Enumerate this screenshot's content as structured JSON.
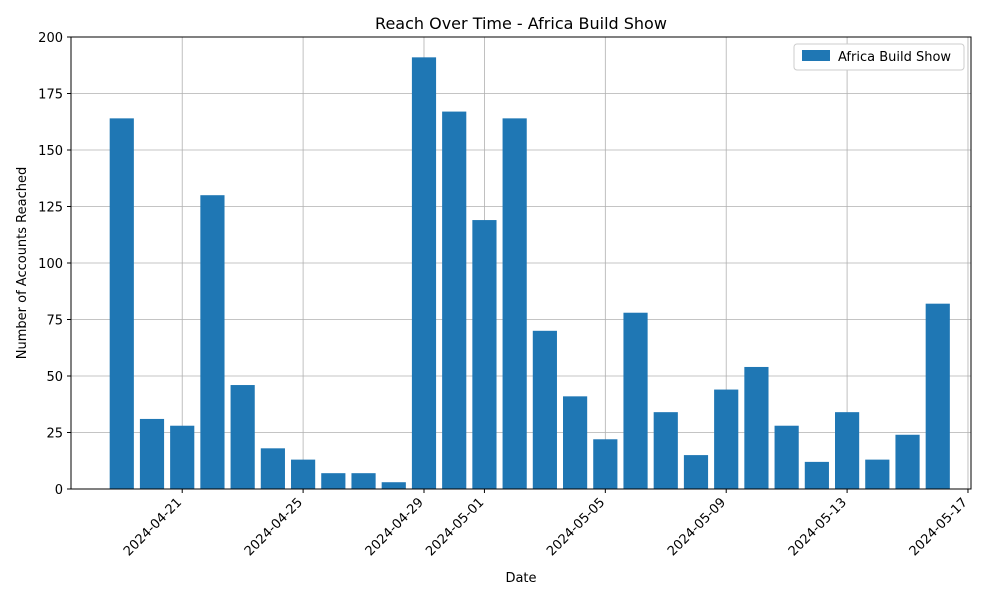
{
  "chart_data": {
    "type": "bar",
    "title": "Reach Over Time - Africa Build Show",
    "xlabel": "Date",
    "ylabel": "Number of Accounts Reached",
    "series": [
      {
        "name": "Africa Build Show",
        "color": "#1f77b4",
        "points": [
          {
            "x": "2024-04-19",
            "y": 164
          },
          {
            "x": "2024-04-20",
            "y": 31
          },
          {
            "x": "2024-04-21",
            "y": 28
          },
          {
            "x": "2024-04-22",
            "y": 130
          },
          {
            "x": "2024-04-23",
            "y": 46
          },
          {
            "x": "2024-04-24",
            "y": 18
          },
          {
            "x": "2024-04-25",
            "y": 13
          },
          {
            "x": "2024-04-26",
            "y": 7
          },
          {
            "x": "2024-04-27",
            "y": 7
          },
          {
            "x": "2024-04-28",
            "y": 3
          },
          {
            "x": "2024-04-29",
            "y": 191
          },
          {
            "x": "2024-04-30",
            "y": 167
          },
          {
            "x": "2024-05-01",
            "y": 119
          },
          {
            "x": "2024-05-02",
            "y": 164
          },
          {
            "x": "2024-05-03",
            "y": 70
          },
          {
            "x": "2024-05-04",
            "y": 41
          },
          {
            "x": "2024-05-05",
            "y": 22
          },
          {
            "x": "2024-05-06",
            "y": 78
          },
          {
            "x": "2024-05-07",
            "y": 34
          },
          {
            "x": "2024-05-08",
            "y": 15
          },
          {
            "x": "2024-05-09",
            "y": 44
          },
          {
            "x": "2024-05-10",
            "y": 54
          },
          {
            "x": "2024-05-11",
            "y": 28
          },
          {
            "x": "2024-05-12",
            "y": 12
          },
          {
            "x": "2024-05-13",
            "y": 34
          },
          {
            "x": "2024-05-14",
            "y": 13
          },
          {
            "x": "2024-05-15",
            "y": 24
          },
          {
            "x": "2024-05-16",
            "y": 82
          }
        ]
      }
    ],
    "x_ticks": [
      "2024-04-21",
      "2024-04-25",
      "2024-04-29",
      "2024-05-01",
      "2024-05-05",
      "2024-05-09",
      "2024-05-13",
      "2024-05-17"
    ],
    "y_ticks": [
      0,
      25,
      50,
      75,
      100,
      125,
      150,
      175,
      200
    ],
    "xlim": [
      "2024-04-17",
      "2024-05-17"
    ],
    "ylim": [
      0,
      200
    ],
    "grid": true,
    "legend": "top-right"
  }
}
